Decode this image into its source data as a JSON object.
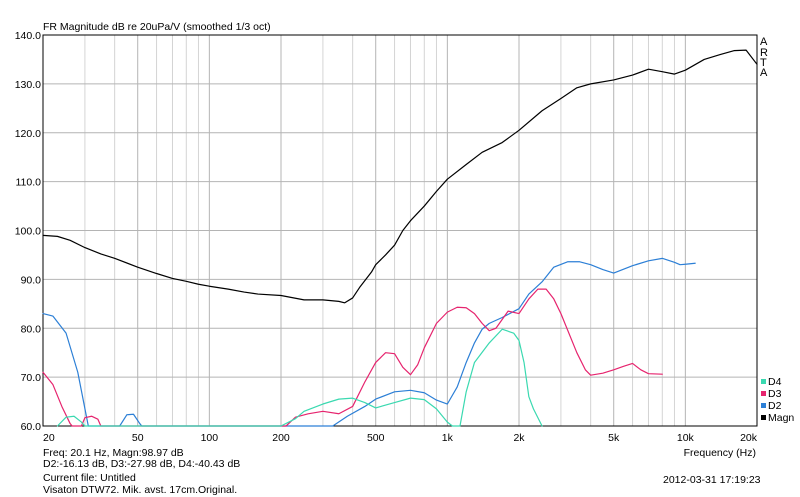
{
  "chart_data": {
    "type": "line",
    "title": "FR Magnitude dB re 20uPa/V (smoothed 1/3 oct)",
    "xlabel": "Frequency (Hz)",
    "ylabel": "",
    "x_scale": "log",
    "xlim": [
      20,
      20000
    ],
    "ylim": [
      60,
      140
    ],
    "grid": true,
    "legend_position": "bottom-right",
    "y_ticks": [
      "60.0",
      "70.0",
      "80.0",
      "90.0",
      "100.0",
      "110.0",
      "120.0",
      "130.0",
      "140.0"
    ],
    "x_ticks": [
      {
        "value": 20,
        "label": "20"
      },
      {
        "value": 50,
        "label": "50"
      },
      {
        "value": 100,
        "label": "100"
      },
      {
        "value": 200,
        "label": "200"
      },
      {
        "value": 500,
        "label": "500"
      },
      {
        "value": 1000,
        "label": "1k"
      },
      {
        "value": 2000,
        "label": "2k"
      },
      {
        "value": 5000,
        "label": "5k"
      },
      {
        "value": 10000,
        "label": "10k"
      },
      {
        "value": 20000,
        "label": "20k"
      }
    ],
    "series": [
      {
        "name": "Magn",
        "color": "#000000",
        "points": [
          [
            20,
            99
          ],
          [
            23,
            98.8
          ],
          [
            26,
            98
          ],
          [
            30,
            96.5
          ],
          [
            35,
            95.2
          ],
          [
            40,
            94.3
          ],
          [
            50,
            92.5
          ],
          [
            60,
            91.2
          ],
          [
            70,
            90.2
          ],
          [
            80,
            89.6
          ],
          [
            90,
            89
          ],
          [
            100,
            88.6
          ],
          [
            120,
            88
          ],
          [
            140,
            87.4
          ],
          [
            160,
            87
          ],
          [
            200,
            86.7
          ],
          [
            250,
            85.8
          ],
          [
            300,
            85.8
          ],
          [
            350,
            85.5
          ],
          [
            370,
            85.2
          ],
          [
            400,
            86.2
          ],
          [
            430,
            88.5
          ],
          [
            480,
            91.5
          ],
          [
            500,
            93
          ],
          [
            550,
            95
          ],
          [
            600,
            97
          ],
          [
            650,
            100
          ],
          [
            700,
            102
          ],
          [
            800,
            105
          ],
          [
            900,
            108
          ],
          [
            1000,
            110.5
          ],
          [
            1200,
            113.5
          ],
          [
            1400,
            116
          ],
          [
            1700,
            118
          ],
          [
            2000,
            120.5
          ],
          [
            2500,
            124.5
          ],
          [
            3000,
            127
          ],
          [
            3500,
            129.2
          ],
          [
            4000,
            130
          ],
          [
            5000,
            130.8
          ],
          [
            6000,
            131.8
          ],
          [
            7000,
            133
          ],
          [
            8000,
            132.5
          ],
          [
            9000,
            132
          ],
          [
            10000,
            132.8
          ],
          [
            12000,
            135
          ],
          [
            14000,
            136
          ],
          [
            16000,
            136.8
          ],
          [
            18000,
            136.9
          ],
          [
            20000,
            134
          ]
        ]
      },
      {
        "name": "D2",
        "color": "#2c7fd6",
        "points": [
          [
            20,
            83
          ],
          [
            22,
            82.5
          ],
          [
            25,
            79
          ],
          [
            28,
            71
          ],
          [
            31,
            60
          ],
          [
            42,
            60
          ],
          [
            45,
            62.3
          ],
          [
            48,
            62.4
          ],
          [
            51,
            60.5
          ],
          [
            52,
            60
          ],
          [
            330,
            60
          ],
          [
            380,
            62
          ],
          [
            450,
            64
          ],
          [
            500,
            65.5
          ],
          [
            600,
            67
          ],
          [
            700,
            67.3
          ],
          [
            800,
            66.8
          ],
          [
            900,
            65.3
          ],
          [
            1000,
            64.5
          ],
          [
            1100,
            68
          ],
          [
            1200,
            73
          ],
          [
            1300,
            77
          ],
          [
            1400,
            79.8
          ],
          [
            1500,
            81
          ],
          [
            1700,
            82.2
          ],
          [
            2000,
            84
          ],
          [
            2200,
            87
          ],
          [
            2500,
            89.5
          ],
          [
            2800,
            92.5
          ],
          [
            3200,
            93.6
          ],
          [
            3600,
            93.6
          ],
          [
            4000,
            93
          ],
          [
            4500,
            92
          ],
          [
            5000,
            91.3
          ],
          [
            6000,
            92.8
          ],
          [
            7000,
            93.8
          ],
          [
            8000,
            94.3
          ],
          [
            9000,
            93.5
          ],
          [
            9500,
            93
          ],
          [
            10000,
            93.1
          ],
          [
            11000,
            93.3
          ]
        ]
      },
      {
        "name": "D3",
        "color": "#e6246e",
        "points": [
          [
            20,
            71
          ],
          [
            22,
            68.5
          ],
          [
            24,
            64
          ],
          [
            26,
            60.5
          ],
          [
            26.5,
            60
          ],
          [
            29,
            60
          ],
          [
            30,
            61.7
          ],
          [
            32,
            62
          ],
          [
            34,
            61.4
          ],
          [
            35,
            60
          ],
          [
            210,
            60
          ],
          [
            230,
            61.8
          ],
          [
            260,
            62.5
          ],
          [
            300,
            63
          ],
          [
            350,
            62.5
          ],
          [
            400,
            64
          ],
          [
            450,
            69
          ],
          [
            500,
            73
          ],
          [
            550,
            75
          ],
          [
            600,
            74.8
          ],
          [
            650,
            72
          ],
          [
            700,
            70.5
          ],
          [
            750,
            72.5
          ],
          [
            800,
            76
          ],
          [
            900,
            81
          ],
          [
            1000,
            83.3
          ],
          [
            1100,
            84.3
          ],
          [
            1200,
            84.2
          ],
          [
            1300,
            83
          ],
          [
            1400,
            81
          ],
          [
            1500,
            79.5
          ],
          [
            1600,
            80
          ],
          [
            1800,
            83.5
          ],
          [
            2000,
            83
          ],
          [
            2200,
            86
          ],
          [
            2400,
            88
          ],
          [
            2600,
            88
          ],
          [
            2800,
            86
          ],
          [
            3000,
            83
          ],
          [
            3500,
            75
          ],
          [
            3800,
            71.5
          ],
          [
            4000,
            70.4
          ],
          [
            4500,
            70.8
          ],
          [
            5000,
            71.5
          ],
          [
            5500,
            72.2
          ],
          [
            6000,
            72.8
          ],
          [
            6500,
            71.5
          ],
          [
            7000,
            70.7
          ],
          [
            8000,
            70.6
          ]
        ]
      },
      {
        "name": "D4",
        "color": "#3ad9b0",
        "points": [
          [
            23,
            60
          ],
          [
            25,
            61.8
          ],
          [
            27,
            62
          ],
          [
            29,
            60.8
          ],
          [
            30,
            60
          ],
          [
            200,
            60
          ],
          [
            230,
            61.5
          ],
          [
            250,
            63
          ],
          [
            300,
            64.5
          ],
          [
            350,
            65.5
          ],
          [
            400,
            65.7
          ],
          [
            450,
            64.8
          ],
          [
            500,
            63.7
          ],
          [
            600,
            64.8
          ],
          [
            700,
            65.7
          ],
          [
            800,
            65.4
          ],
          [
            900,
            63.5
          ],
          [
            1000,
            60.8
          ],
          [
            1050,
            60
          ],
          [
            1130,
            60
          ],
          [
            1200,
            67
          ],
          [
            1300,
            73
          ],
          [
            1500,
            77
          ],
          [
            1700,
            79.8
          ],
          [
            1900,
            79
          ],
          [
            2000,
            77.5
          ],
          [
            2100,
            73
          ],
          [
            2200,
            66
          ],
          [
            2300,
            63.5
          ],
          [
            2500,
            60
          ]
        ]
      }
    ],
    "legend": [
      {
        "name": "D4",
        "color": "#3ad9b0"
      },
      {
        "name": "D3",
        "color": "#e6246e"
      },
      {
        "name": "D2",
        "color": "#2c7fd6"
      },
      {
        "name": "Magn",
        "color": "#000000"
      }
    ],
    "watermark": [
      "A",
      "R",
      "T",
      "A"
    ]
  },
  "footer": {
    "cursor_line": "Freq: 20.1 Hz, Magn:98.97 dB",
    "delta_line": "D2:-16.13 dB, D3:-27.98 dB, D4:-40.43 dB",
    "current_file": "Current file: Untitled",
    "description": "Visaton DTW72. Mik. avst. 17cm.Original.",
    "timestamp": "2012-03-31  17:19:23"
  }
}
